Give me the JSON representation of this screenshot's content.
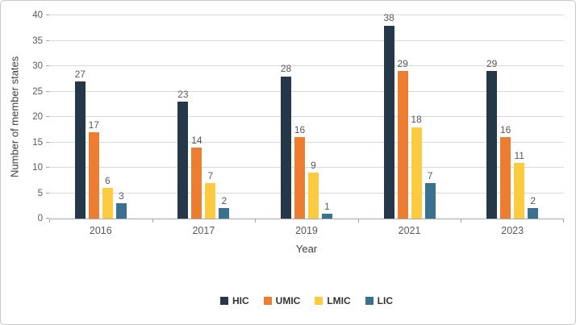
{
  "chart_data": {
    "type": "bar",
    "title": "",
    "xlabel": "Year",
    "ylabel": "Number of member states",
    "ylim": [
      0,
      40
    ],
    "yticks": [
      0,
      5,
      10,
      15,
      20,
      25,
      30,
      35,
      40
    ],
    "categories": [
      "2016",
      "2017",
      "2019",
      "2021",
      "2023"
    ],
    "series": [
      {
        "name": "HIC",
        "color": "#24384A",
        "values": [
          27,
          23,
          28,
          38,
          29
        ]
      },
      {
        "name": "UMIC",
        "color": "#ED7D31",
        "values": [
          17,
          14,
          16,
          29,
          16
        ]
      },
      {
        "name": "LMIC",
        "color": "#FCCB3F",
        "values": [
          6,
          7,
          9,
          18,
          11
        ]
      },
      {
        "name": "LIC",
        "color": "#3A7191",
        "values": [
          3,
          2,
          1,
          7,
          2
        ]
      }
    ],
    "legend_position": "bottom",
    "grid": true,
    "show_data_labels": true
  }
}
